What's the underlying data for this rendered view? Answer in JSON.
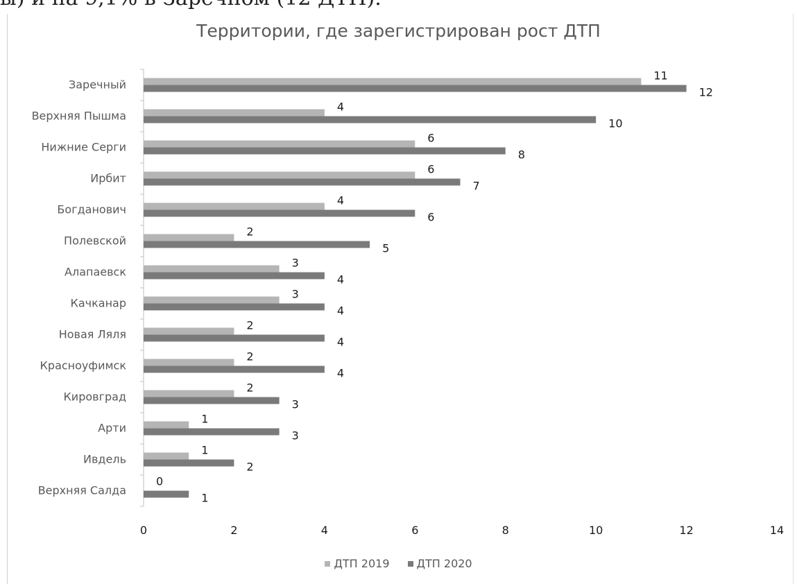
{
  "header_text": "ы) и на 9,1% в Заречном (12 ДТП).",
  "chart_data": {
    "type": "bar",
    "orientation": "horizontal",
    "title": "Территории, где зарегистрирован рост ДТП",
    "categories": [
      "Заречный",
      "Верхняя Пышма",
      "Нижние Серги",
      "Ирбит",
      "Богданович",
      "Полевской",
      "Алапаевск",
      "Качканар",
      "Новая Ляля",
      "Красноуфимск",
      "Кировград",
      "Арти",
      "Ивдель",
      "Верхняя Салда"
    ],
    "series": [
      {
        "name": "ДТП 2019",
        "color": "#b5b5b5",
        "values": [
          11,
          4,
          6,
          6,
          4,
          2,
          3,
          3,
          2,
          2,
          2,
          1,
          1,
          0
        ]
      },
      {
        "name": "ДТП 2020",
        "color": "#7a7a7a",
        "values": [
          12,
          10,
          8,
          7,
          6,
          5,
          4,
          4,
          4,
          4,
          3,
          3,
          2,
          1
        ]
      }
    ],
    "xlim": [
      0,
      14
    ],
    "xticks": [
      "0",
      "2",
      "4",
      "6",
      "8",
      "10",
      "12",
      "14"
    ],
    "grid": false,
    "legend_position": "bottom",
    "data_labels": true
  }
}
